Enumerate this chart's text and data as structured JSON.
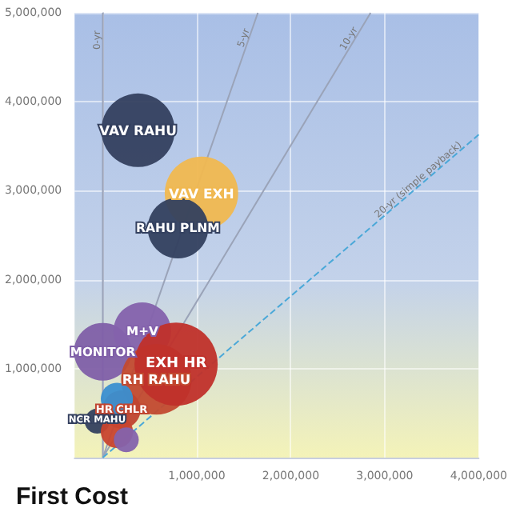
{
  "chart_data": {
    "type": "bubble",
    "xlabel": "First Cost",
    "xlim": [
      -300000,
      4000000
    ],
    "ylim": [
      0,
      5000000
    ],
    "xticks": [
      {
        "value": 0,
        "label": null
      },
      {
        "value": 1000000,
        "label": "1,000,000"
      },
      {
        "value": 2000000,
        "label": "2,000,000"
      },
      {
        "value": 3000000,
        "label": "3,000,000"
      },
      {
        "value": 4000000,
        "label": "4,000,000"
      }
    ],
    "yticks": [
      {
        "value": 0,
        "label": null
      },
      {
        "value": 1000000,
        "label": "1,000,000"
      },
      {
        "value": 2000000,
        "label": "2,000,000"
      },
      {
        "value": 3000000,
        "label": "3,000,000"
      },
      {
        "value": 4000000,
        "label": "4,000,000"
      },
      {
        "value": 5000000,
        "label": "5,000,000"
      }
    ],
    "grid": true,
    "legend": false,
    "series": [
      {
        "name": "0-yr",
        "type": "line",
        "color": "#9aa3b8",
        "line_style": "solid",
        "x": [
          0,
          0
        ],
        "values": [
          0,
          5000000
        ]
      },
      {
        "name": "5-yr",
        "type": "line",
        "color": "#9aa3b8",
        "line_style": "solid",
        "x": [
          0,
          1650000
        ],
        "values": [
          0,
          5000000
        ]
      },
      {
        "name": "10-yr",
        "type": "line",
        "color": "#9aa3b8",
        "line_style": "solid",
        "x": [
          0,
          2850000
        ],
        "values": [
          0,
          5000000
        ]
      },
      {
        "name": "20-yr (simple payback)",
        "type": "line",
        "color": "#4aa8d8",
        "line_style": "dashed",
        "x": [
          0,
          4000000
        ],
        "values": [
          0,
          3630000
        ]
      },
      {
        "name": "VAV RAHU",
        "color": "#34405f",
        "x": [
          375000
        ],
        "values": [
          3680000
        ],
        "sizes": [
          0.78
        ]
      },
      {
        "name": "VAV EXH",
        "color": "#f0b850",
        "x": [
          1050000
        ],
        "values": [
          2970000
        ],
        "sizes": [
          0.78
        ]
      },
      {
        "name": "RAHU PLNM",
        "color": "#33405f",
        "x": [
          800000
        ],
        "values": [
          2580000
        ],
        "sizes": [
          0.53
        ]
      },
      {
        "name": "MONITOR",
        "color": "#7f5fa8",
        "x": [
          0
        ],
        "values": [
          1190000
        ],
        "sizes": [
          0.48
        ]
      },
      {
        "name": "M+V",
        "color": "#8462ac",
        "x": [
          420000
        ],
        "values": [
          1420000
        ],
        "sizes": [
          0.48
        ]
      },
      {
        "name": "RH RAHU",
        "color": "#c24a30",
        "x": [
          570000
        ],
        "values": [
          880000
        ],
        "sizes": [
          0.72
        ]
      },
      {
        "name": "EXH HR",
        "color": "#c0302a",
        "x": [
          780000
        ],
        "values": [
          1050000
        ],
        "sizes": [
          1
        ]
      },
      {
        "name": "HR CHLR",
        "color": "#c04530",
        "x": [
          200000
        ],
        "values": [
          540000
        ],
        "sizes": [
          0.21
        ]
      },
      {
        "color": "#3a8fd0",
        "x": [
          150000
        ],
        "values": [
          660000
        ],
        "sizes": [
          0.15
        ]
      },
      {
        "name": "NCR MAHU",
        "color": "#34405f",
        "x": [
          -60000
        ],
        "values": [
          410000
        ],
        "sizes": [
          0.09
        ]
      },
      {
        "color": "#c8452e",
        "x": [
          150000
        ],
        "values": [
          290000
        ],
        "sizes": [
          0.15
        ]
      },
      {
        "color": "#8462ac",
        "x": [
          250000
        ],
        "values": [
          200000
        ],
        "sizes": [
          0.09
        ]
      }
    ]
  }
}
